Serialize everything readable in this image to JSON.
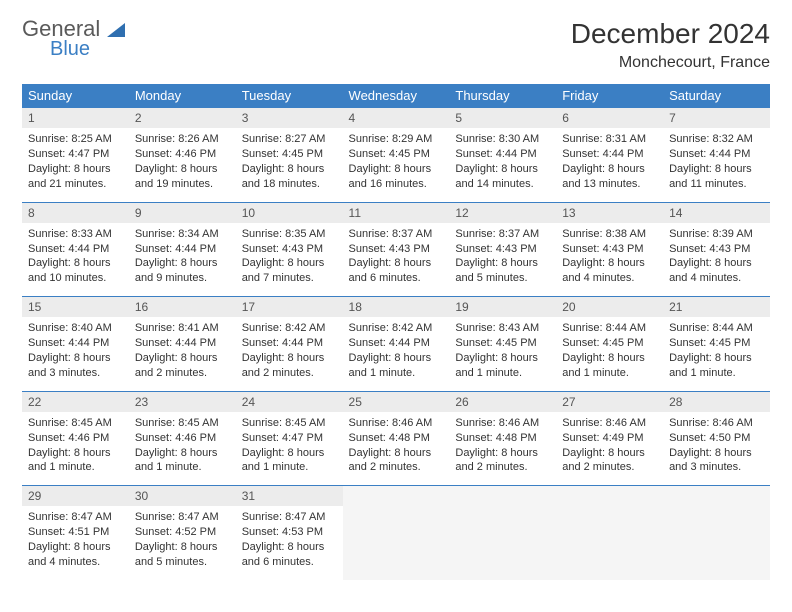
{
  "logo": {
    "word1": "General",
    "word2": "Blue",
    "shape_color": "#2f6fb0"
  },
  "title": "December 2024",
  "location": "Monchecourt, France",
  "colors": {
    "header_bg": "#3b7fc4",
    "header_text": "#ffffff",
    "daynum_bg": "#ececec",
    "border": "#3b7fc4",
    "text": "#333333"
  },
  "day_headers": [
    "Sunday",
    "Monday",
    "Tuesday",
    "Wednesday",
    "Thursday",
    "Friday",
    "Saturday"
  ],
  "weeks": [
    [
      {
        "n": "1",
        "sunrise": "8:25 AM",
        "sunset": "4:47 PM",
        "daylight": "8 hours and 21 minutes."
      },
      {
        "n": "2",
        "sunrise": "8:26 AM",
        "sunset": "4:46 PM",
        "daylight": "8 hours and 19 minutes."
      },
      {
        "n": "3",
        "sunrise": "8:27 AM",
        "sunset": "4:45 PM",
        "daylight": "8 hours and 18 minutes."
      },
      {
        "n": "4",
        "sunrise": "8:29 AM",
        "sunset": "4:45 PM",
        "daylight": "8 hours and 16 minutes."
      },
      {
        "n": "5",
        "sunrise": "8:30 AM",
        "sunset": "4:44 PM",
        "daylight": "8 hours and 14 minutes."
      },
      {
        "n": "6",
        "sunrise": "8:31 AM",
        "sunset": "4:44 PM",
        "daylight": "8 hours and 13 minutes."
      },
      {
        "n": "7",
        "sunrise": "8:32 AM",
        "sunset": "4:44 PM",
        "daylight": "8 hours and 11 minutes."
      }
    ],
    [
      {
        "n": "8",
        "sunrise": "8:33 AM",
        "sunset": "4:44 PM",
        "daylight": "8 hours and 10 minutes."
      },
      {
        "n": "9",
        "sunrise": "8:34 AM",
        "sunset": "4:44 PM",
        "daylight": "8 hours and 9 minutes."
      },
      {
        "n": "10",
        "sunrise": "8:35 AM",
        "sunset": "4:43 PM",
        "daylight": "8 hours and 7 minutes."
      },
      {
        "n": "11",
        "sunrise": "8:37 AM",
        "sunset": "4:43 PM",
        "daylight": "8 hours and 6 minutes."
      },
      {
        "n": "12",
        "sunrise": "8:37 AM",
        "sunset": "4:43 PM",
        "daylight": "8 hours and 5 minutes."
      },
      {
        "n": "13",
        "sunrise": "8:38 AM",
        "sunset": "4:43 PM",
        "daylight": "8 hours and 4 minutes."
      },
      {
        "n": "14",
        "sunrise": "8:39 AM",
        "sunset": "4:43 PM",
        "daylight": "8 hours and 4 minutes."
      }
    ],
    [
      {
        "n": "15",
        "sunrise": "8:40 AM",
        "sunset": "4:44 PM",
        "daylight": "8 hours and 3 minutes."
      },
      {
        "n": "16",
        "sunrise": "8:41 AM",
        "sunset": "4:44 PM",
        "daylight": "8 hours and 2 minutes."
      },
      {
        "n": "17",
        "sunrise": "8:42 AM",
        "sunset": "4:44 PM",
        "daylight": "8 hours and 2 minutes."
      },
      {
        "n": "18",
        "sunrise": "8:42 AM",
        "sunset": "4:44 PM",
        "daylight": "8 hours and 1 minute."
      },
      {
        "n": "19",
        "sunrise": "8:43 AM",
        "sunset": "4:45 PM",
        "daylight": "8 hours and 1 minute."
      },
      {
        "n": "20",
        "sunrise": "8:44 AM",
        "sunset": "4:45 PM",
        "daylight": "8 hours and 1 minute."
      },
      {
        "n": "21",
        "sunrise": "8:44 AM",
        "sunset": "4:45 PM",
        "daylight": "8 hours and 1 minute."
      }
    ],
    [
      {
        "n": "22",
        "sunrise": "8:45 AM",
        "sunset": "4:46 PM",
        "daylight": "8 hours and 1 minute."
      },
      {
        "n": "23",
        "sunrise": "8:45 AM",
        "sunset": "4:46 PM",
        "daylight": "8 hours and 1 minute."
      },
      {
        "n": "24",
        "sunrise": "8:45 AM",
        "sunset": "4:47 PM",
        "daylight": "8 hours and 1 minute."
      },
      {
        "n": "25",
        "sunrise": "8:46 AM",
        "sunset": "4:48 PM",
        "daylight": "8 hours and 2 minutes."
      },
      {
        "n": "26",
        "sunrise": "8:46 AM",
        "sunset": "4:48 PM",
        "daylight": "8 hours and 2 minutes."
      },
      {
        "n": "27",
        "sunrise": "8:46 AM",
        "sunset": "4:49 PM",
        "daylight": "8 hours and 2 minutes."
      },
      {
        "n": "28",
        "sunrise": "8:46 AM",
        "sunset": "4:50 PM",
        "daylight": "8 hours and 3 minutes."
      }
    ],
    [
      {
        "n": "29",
        "sunrise": "8:47 AM",
        "sunset": "4:51 PM",
        "daylight": "8 hours and 4 minutes."
      },
      {
        "n": "30",
        "sunrise": "8:47 AM",
        "sunset": "4:52 PM",
        "daylight": "8 hours and 5 minutes."
      },
      {
        "n": "31",
        "sunrise": "8:47 AM",
        "sunset": "4:53 PM",
        "daylight": "8 hours and 6 minutes."
      },
      null,
      null,
      null,
      null
    ]
  ],
  "labels": {
    "sunrise": "Sunrise: ",
    "sunset": "Sunset: ",
    "daylight": "Daylight: "
  }
}
